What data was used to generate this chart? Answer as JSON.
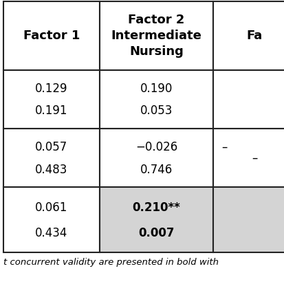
{
  "col_headers": [
    "Factor 1",
    "Factor 2\nIntermediate\nNursing",
    "Fa"
  ],
  "rows": [
    {
      "cells": [
        "0.129\n0.191",
        "0.190\n0.053",
        ""
      ],
      "bold": [
        false,
        false,
        false
      ],
      "bg": [
        "#ffffff",
        "#ffffff",
        "#ffffff"
      ]
    },
    {
      "cells": [
        "0.057\n0.483",
        "−0.026\n0.746",
        "–"
      ],
      "bold": [
        false,
        false,
        false
      ],
      "bg": [
        "#ffffff",
        "#ffffff",
        "#ffffff"
      ]
    },
    {
      "cells": [
        "0.061\n0.434",
        "0.210**\n0.007",
        ""
      ],
      "bold": [
        false,
        true,
        false
      ],
      "bg": [
        "#ffffff",
        "#d4d4d4",
        "#d4d4d4"
      ]
    }
  ],
  "footer": "t concurrent validity are presented in bold with",
  "bg_color": "#ffffff",
  "border_color": "#222222",
  "font_size_header": 13,
  "font_size_cell": 12,
  "font_size_footer": 9.5
}
